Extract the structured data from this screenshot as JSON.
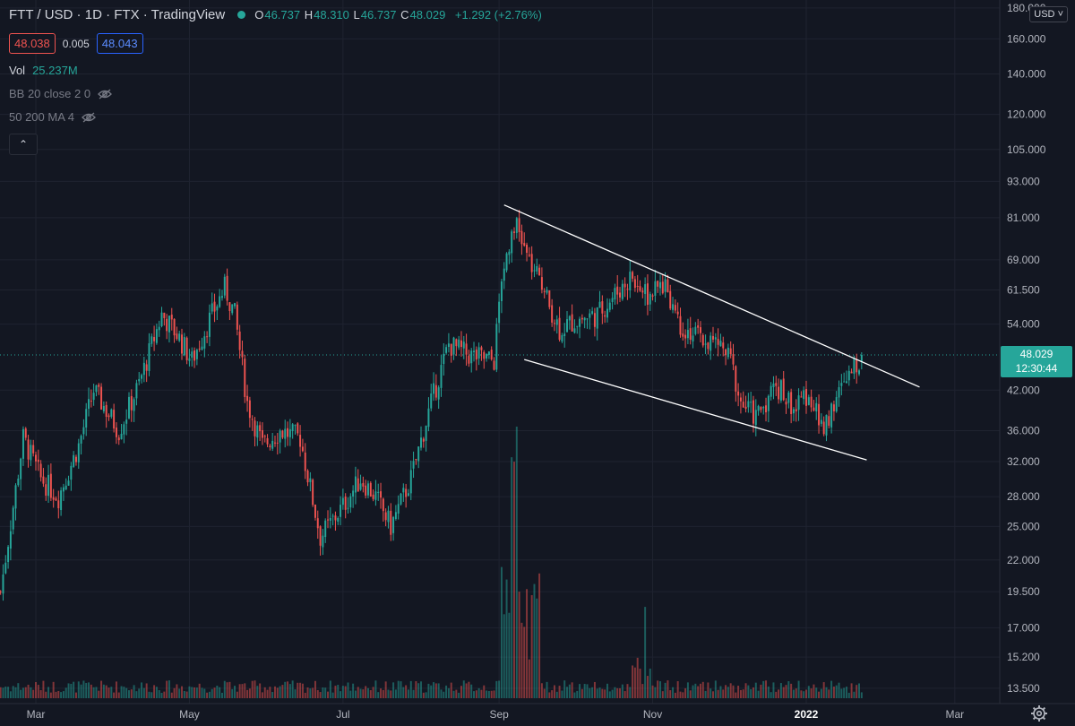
{
  "header": {
    "symbol": "FTT / USD",
    "interval": "1D",
    "exchange": "FTX",
    "source": "TradingView",
    "ohlc": {
      "o_label": "O",
      "o": "46.737",
      "h_label": "H",
      "h": "48.310",
      "l_label": "L",
      "l": "46.737",
      "c_label": "C",
      "c": "48.029",
      "change": "+1.292 (+2.76%)"
    },
    "bid": "48.038",
    "spread": "0.005",
    "ask": "48.043"
  },
  "indicators": [
    {
      "name": "Vol",
      "value": "25.237M"
    },
    {
      "name": "BB 20 close 2 0"
    },
    {
      "name": "50 200 MA 4"
    }
  ],
  "currency_selector": "USD",
  "last_price": {
    "price": "48.029",
    "countdown": "12:30:44"
  },
  "colors": {
    "background": "#131722",
    "up": "#26a69a",
    "down": "#ef5350",
    "grid": "#1f2330",
    "trendline": "#ffffff"
  },
  "icons": [
    "eye-off-icon",
    "chevron-up-icon",
    "gear-icon",
    "chevron-down-icon"
  ],
  "chart_data": {
    "type": "candlestick",
    "scale": "log",
    "y_ticks": [
      "180.000",
      "160.000",
      "140.000",
      "120.000",
      "105.000",
      "93.000",
      "81.000",
      "69.000",
      "61.500",
      "54.000",
      "42.000",
      "36.000",
      "32.000",
      "28.000",
      "25.000",
      "22.000",
      "19.500",
      "17.000",
      "15.200",
      "13.500"
    ],
    "x_ticks": [
      "Mar",
      "May",
      "Jul",
      "Sep",
      "Nov",
      "2022",
      "Mar"
    ],
    "x_range": [
      "2021-02-15",
      "2022-03-08"
    ],
    "price_path": [
      {
        "date": "2021-02-15",
        "close": 19.5
      },
      {
        "date": "2021-02-24",
        "close": 35
      },
      {
        "date": "2021-03-03",
        "close": 30
      },
      {
        "date": "2021-03-10",
        "close": 28
      },
      {
        "date": "2021-03-18",
        "close": 34
      },
      {
        "date": "2021-03-24",
        "close": 42
      },
      {
        "date": "2021-04-03",
        "close": 36
      },
      {
        "date": "2021-04-11",
        "close": 43
      },
      {
        "date": "2021-04-20",
        "close": 56
      },
      {
        "date": "2021-04-26",
        "close": 52
      },
      {
        "date": "2021-05-02",
        "close": 47
      },
      {
        "date": "2021-05-09",
        "close": 55
      },
      {
        "date": "2021-05-15",
        "close": 62
      },
      {
        "date": "2021-05-19",
        "close": 56
      },
      {
        "date": "2021-05-24",
        "close": 40
      },
      {
        "date": "2021-05-30",
        "close": 34
      },
      {
        "date": "2021-06-06",
        "close": 36
      },
      {
        "date": "2021-06-14",
        "close": 35
      },
      {
        "date": "2021-06-22",
        "close": 24
      },
      {
        "date": "2021-07-01",
        "close": 27
      },
      {
        "date": "2021-07-08",
        "close": 30
      },
      {
        "date": "2021-07-14",
        "close": 28
      },
      {
        "date": "2021-07-20",
        "close": 25
      },
      {
        "date": "2021-07-28",
        "close": 30
      },
      {
        "date": "2021-08-05",
        "close": 40
      },
      {
        "date": "2021-08-12",
        "close": 50
      },
      {
        "date": "2021-08-20",
        "close": 48
      },
      {
        "date": "2021-08-30",
        "close": 47
      },
      {
        "date": "2021-09-02",
        "close": 65
      },
      {
        "date": "2021-09-07",
        "close": 80
      },
      {
        "date": "2021-09-12",
        "close": 70
      },
      {
        "date": "2021-09-18",
        "close": 62
      },
      {
        "date": "2021-09-25",
        "close": 53
      },
      {
        "date": "2021-10-02",
        "close": 55
      },
      {
        "date": "2021-10-10",
        "close": 56
      },
      {
        "date": "2021-10-18",
        "close": 61
      },
      {
        "date": "2021-10-24",
        "close": 65
      },
      {
        "date": "2021-10-30",
        "close": 60
      },
      {
        "date": "2021-11-06",
        "close": 63
      },
      {
        "date": "2021-11-12",
        "close": 54
      },
      {
        "date": "2021-11-20",
        "close": 51
      },
      {
        "date": "2021-11-27",
        "close": 50
      },
      {
        "date": "2021-12-02",
        "close": 47
      },
      {
        "date": "2021-12-06",
        "close": 40
      },
      {
        "date": "2021-12-12",
        "close": 38
      },
      {
        "date": "2021-12-20",
        "close": 43
      },
      {
        "date": "2021-12-28",
        "close": 39
      },
      {
        "date": "2022-01-02",
        "close": 42
      },
      {
        "date": "2022-01-07",
        "close": 36
      },
      {
        "date": "2022-01-12",
        "close": 40
      },
      {
        "date": "2022-01-18",
        "close": 44
      },
      {
        "date": "2022-01-23",
        "close": 48.029
      }
    ],
    "trendlines": [
      {
        "from": {
          "date": "2021-09-03",
          "price": 85
        },
        "to": {
          "date": "2022-02-15",
          "price": 42.5
        }
      },
      {
        "from": {
          "date": "2021-09-11",
          "price": 47.2
        },
        "to": {
          "date": "2022-01-25",
          "price": 32.2
        }
      }
    ]
  }
}
